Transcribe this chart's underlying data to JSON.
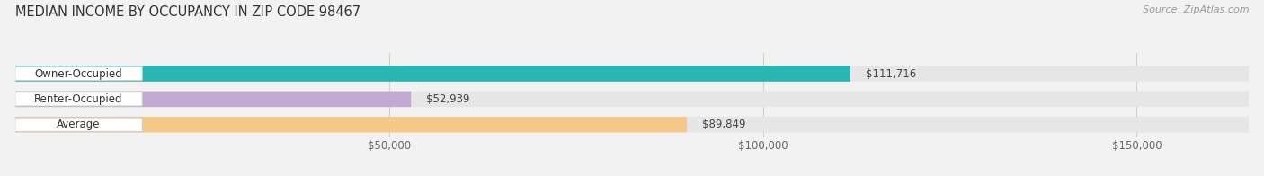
{
  "title": "MEDIAN INCOME BY OCCUPANCY IN ZIP CODE 98467",
  "source": "Source: ZipAtlas.com",
  "categories": [
    "Owner-Occupied",
    "Renter-Occupied",
    "Average"
  ],
  "values": [
    111716,
    52939,
    89849
  ],
  "bar_colors": [
    "#2ab5b5",
    "#c4a8d4",
    "#f5c98a"
  ],
  "value_labels": [
    "$111,716",
    "$52,939",
    "$89,849"
  ],
  "xlim": [
    0,
    165000
  ],
  "xticks": [
    50000,
    100000,
    150000
  ],
  "xticklabels": [
    "$50,000",
    "$100,000",
    "$150,000"
  ],
  "background_color": "#f2f2f2",
  "bar_background": "#e6e6e6",
  "bar_height": 0.62,
  "title_fontsize": 10.5,
  "source_fontsize": 8,
  "label_fontsize": 8.5,
  "value_fontsize": 8.5,
  "grid_color": "#d0d0d0"
}
